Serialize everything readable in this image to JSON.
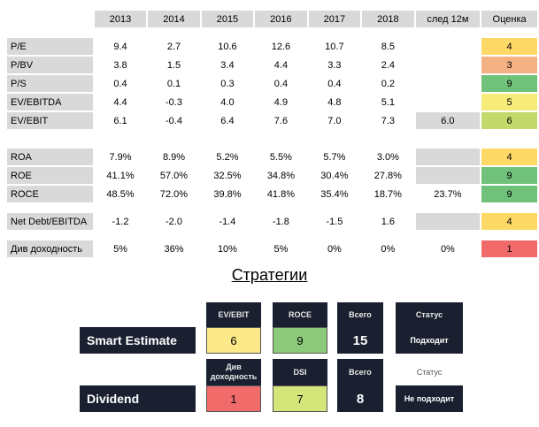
{
  "metrics": {
    "headers": [
      "2013",
      "2014",
      "2015",
      "2016",
      "2017",
      "2018",
      "след 12м",
      "Оценка"
    ],
    "rows": [
      {
        "label": "P/E",
        "values": [
          "9.4",
          "2.7",
          "10.6",
          "12.6",
          "10.7",
          "8.5"
        ],
        "forward": "",
        "score": "4",
        "score_color": "#ffd966"
      },
      {
        "label": "P/BV",
        "values": [
          "3.8",
          "1.5",
          "3.4",
          "4.4",
          "3.3",
          "2.4"
        ],
        "forward": "",
        "score": "3",
        "score_color": "#f4b183"
      },
      {
        "label": "P/S",
        "values": [
          "0.4",
          "0.1",
          "0.3",
          "0.4",
          "0.4",
          "0.2"
        ],
        "forward": "",
        "score": "9",
        "score_color": "#70c17a"
      },
      {
        "label": "EV/EBITDA",
        "values": [
          "4.4",
          "-0.3",
          "4.0",
          "4.9",
          "4.8",
          "5.1"
        ],
        "forward": "",
        "score": "5",
        "score_color": "#f7ec7a"
      },
      {
        "label": "EV/EBIT",
        "values": [
          "6.1",
          "-0.4",
          "6.4",
          "7.6",
          "7.0",
          "7.3"
        ],
        "forward": "6.0",
        "score": "6",
        "score_color": "#c3d96b"
      },
      {
        "label": "ROA",
        "values": [
          "7.9%",
          "8.9%",
          "5.2%",
          "5.5%",
          "5.7%",
          "3.0%"
        ],
        "forward": "",
        "score": "4",
        "score_color": "#ffd966"
      },
      {
        "label": "ROE",
        "values": [
          "41.1%",
          "57.0%",
          "32.5%",
          "34.8%",
          "30.4%",
          "27.8%"
        ],
        "forward": "",
        "score": "9",
        "score_color": "#70c17a"
      },
      {
        "label": "ROCE",
        "values": [
          "48.5%",
          "72.0%",
          "39.8%",
          "41.8%",
          "35.4%",
          "18.7%"
        ],
        "forward": "23.7%",
        "score": "9",
        "score_color": "#70c17a"
      },
      {
        "label": "Net Debt/EBITDA",
        "values": [
          "-1.2",
          "-2.0",
          "-1.4",
          "-1.8",
          "-1.5",
          "1.6"
        ],
        "forward": "",
        "score": "4",
        "score_color": "#ffd966"
      },
      {
        "label": "Див доходность",
        "values": [
          "5%",
          "36%",
          "10%",
          "5%",
          "0%",
          "0%"
        ],
        "forward": "0%",
        "score": "1",
        "score_color": "#f26b6b"
      }
    ]
  },
  "strategies": {
    "title": "Стратегии",
    "smart": {
      "name": "Smart Estimate",
      "h1": "EV/EBIT",
      "v1": "6",
      "c1": "#fde88a",
      "h2": "ROCE",
      "v2": "9",
      "c2": "#8cc97a",
      "h3": "Всего",
      "total": "15",
      "h4": "Статус",
      "status": "Подходит"
    },
    "dividend": {
      "name": "Dividend",
      "h1": "Див доходность",
      "v1": "1",
      "c1": "#f26b6b",
      "h2": "DSI",
      "v2": "7",
      "c2": "#d4e67a",
      "h3": "Всего",
      "total": "8",
      "h4": "Статус",
      "status": "Не подходит"
    }
  }
}
